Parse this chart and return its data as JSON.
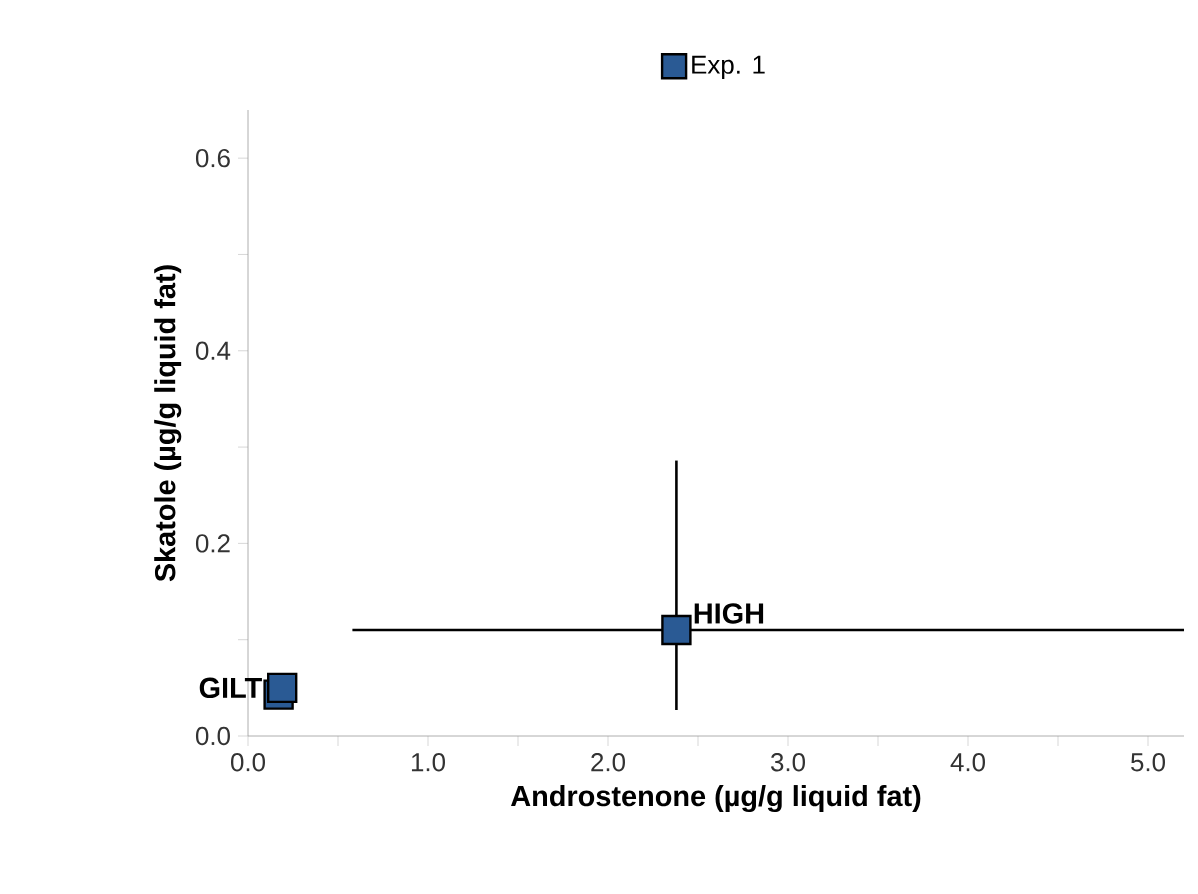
{
  "chart_data": {
    "type": "scatter",
    "xlabel": "Androstenone (µg/g liquid fat)",
    "ylabel": "Skatole (µg/g liquid fat)",
    "x": [
      0.17,
      0.19,
      2.38
    ],
    "series": [
      {
        "name": "Exp. 1",
        "color": "#2a5a94",
        "values": [
          0.043,
          0.05,
          0.11
        ],
        "errors": [
          null,
          null,
          [
            0.027,
            0.286
          ]
        ],
        "xerrors": [
          null,
          null,
          [
            0.58,
            5.2
          ]
        ]
      }
    ],
    "annotations": [
      {
        "text": "GILT",
        "x": 0.17,
        "y": 0.05
      },
      {
        "text": "HIGH",
        "x": 2.38,
        "y": 0.11
      }
    ],
    "xlim": [
      0,
      5.2
    ],
    "xticks": [
      {
        "value": 0,
        "label": "0.0"
      },
      {
        "value": 0.5,
        "label": null
      },
      {
        "value": 1,
        "label": "1.0"
      },
      {
        "value": 1.5,
        "label": null
      },
      {
        "value": 2,
        "label": "2.0"
      },
      {
        "value": 2.5,
        "label": null
      },
      {
        "value": 3,
        "label": "3.0"
      },
      {
        "value": 3.5,
        "label": null
      },
      {
        "value": 4,
        "label": "4.0"
      },
      {
        "value": 4.5,
        "label": null
      },
      {
        "value": 5,
        "label": "5.0"
      }
    ],
    "ylim": [
      0,
      0.65
    ],
    "yticks": [
      {
        "value": 0,
        "label": "0.0"
      },
      {
        "value": 0.1,
        "label": null
      },
      {
        "value": 0.2,
        "label": "0.2"
      },
      {
        "value": 0.3,
        "label": null
      },
      {
        "value": 0.4,
        "label": "0.4"
      },
      {
        "value": 0.5,
        "label": null
      },
      {
        "value": 0.6,
        "label": "0.6"
      }
    ],
    "legend": "top",
    "marker": "square",
    "grid": false
  }
}
